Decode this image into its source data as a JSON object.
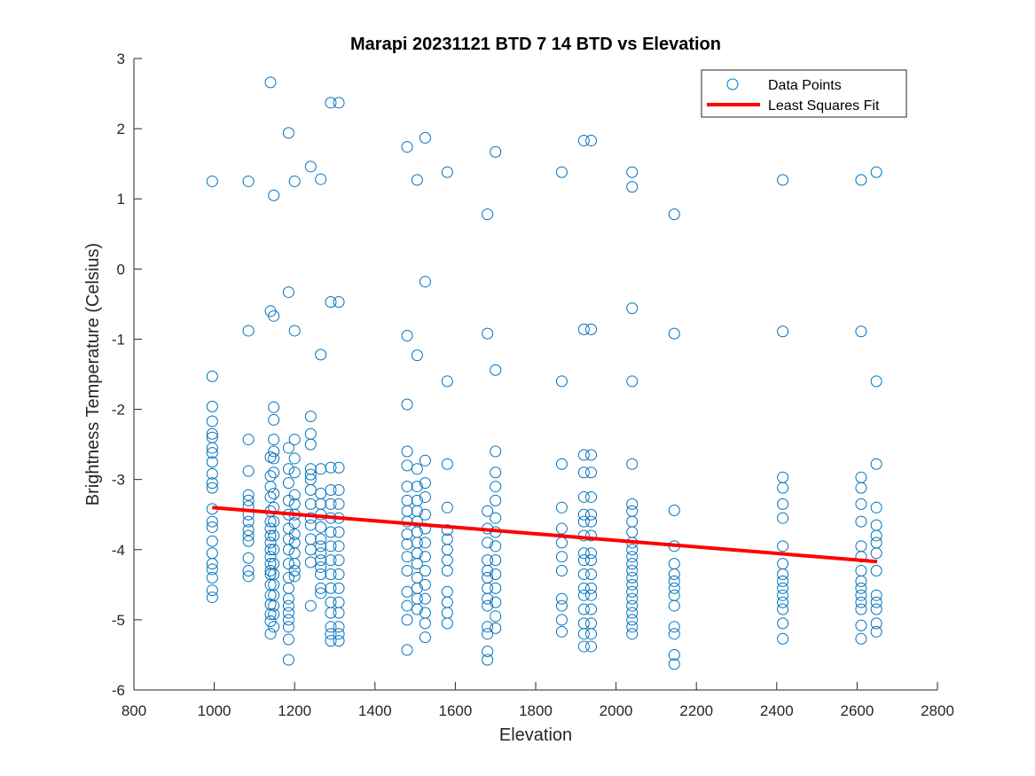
{
  "chart_data": {
    "type": "scatter",
    "title": "Marapi 20231121 BTD 7 14 BTD vs Elevation",
    "xlabel": "Elevation",
    "ylabel": "Brightness Temperature (Celsius)",
    "xlim": [
      800,
      2800
    ],
    "ylim": [
      -6,
      3
    ],
    "xticks": [
      "800",
      "1000",
      "1200",
      "1400",
      "1600",
      "1800",
      "2000",
      "2200",
      "2400",
      "2600",
      "2800"
    ],
    "yticks": [
      "-6",
      "-5",
      "-4",
      "-3",
      "-2",
      "-1",
      "0",
      "1",
      "2",
      "3"
    ],
    "grid": false,
    "legend_position": "top-right",
    "colors": {
      "points": "#0072BD",
      "fit": "#FF0000"
    },
    "series": [
      {
        "name": "Data Points",
        "marker": "circle-open",
        "groups": [
          {
            "x": 995,
            "y": [
              1.25,
              -1.53,
              -1.96,
              -2.17,
              -2.35,
              -2.4,
              -2.55,
              -2.62,
              -2.75,
              -2.92,
              -3.05,
              -3.12,
              -3.42,
              -3.6,
              -3.68,
              -3.88,
              -4.05,
              -4.2,
              -4.28,
              -4.4,
              -4.58,
              -4.68
            ]
          },
          {
            "x": 1085,
            "y": [
              1.25,
              -0.88,
              -2.43,
              -2.88,
              -3.22,
              -3.3,
              -3.38,
              -3.5,
              -3.6,
              -3.72,
              -3.8,
              -3.88,
              -4.12,
              -4.3,
              -4.38
            ]
          },
          {
            "x": 1140,
            "y": [
              2.66,
              -0.6,
              -2.68,
              -2.95,
              -3.1,
              -3.25,
              -3.45,
              -3.6,
              -3.7,
              -3.8,
              -3.9,
              -4.0,
              -4.1,
              -4.2,
              -4.3,
              -4.35,
              -4.5,
              -4.65,
              -4.78,
              -4.92,
              -5.02,
              -5.2
            ]
          },
          {
            "x": 1148,
            "y": [
              1.05,
              -0.67,
              -1.97,
              -2.15,
              -2.43,
              -2.6,
              -2.7,
              -2.9,
              -3.2,
              -3.4,
              -3.6,
              -3.8,
              -4.0,
              -4.2,
              -4.35,
              -4.5,
              -4.65,
              -4.8,
              -4.92,
              -5.1
            ]
          },
          {
            "x": 1185,
            "y": [
              1.94,
              -0.33,
              -2.55,
              -2.85,
              -3.05,
              -3.3,
              -3.5,
              -3.7,
              -3.85,
              -4.0,
              -4.2,
              -4.4,
              -4.55,
              -4.7,
              -4.8,
              -4.9,
              -5.0,
              -5.1,
              -5.28,
              -5.57
            ]
          },
          {
            "x": 1200,
            "y": [
              1.25,
              -0.88,
              -2.43,
              -2.7,
              -2.9,
              -3.22,
              -3.35,
              -3.5,
              -3.62,
              -3.78,
              -3.9,
              -4.05,
              -4.2,
              -4.3,
              -4.38
            ]
          },
          {
            "x": 1240,
            "y": [
              1.46,
              -2.1,
              -2.35,
              -2.5,
              -2.85,
              -2.93,
              -3.0,
              -3.15,
              -3.35,
              -3.55,
              -3.65,
              -3.85,
              -4.0,
              -4.18,
              -4.8
            ]
          },
          {
            "x": 1265,
            "y": [
              1.28,
              -1.22,
              -2.85,
              -3.2,
              -3.35,
              -3.5,
              -3.68,
              -3.85,
              -3.95,
              -4.05,
              -4.15,
              -4.25,
              -4.35,
              -4.55,
              -4.62
            ]
          },
          {
            "x": 1290,
            "y": [
              2.37,
              -0.47,
              -2.83,
              -3.15,
              -3.35,
              -3.55,
              -3.75,
              -3.95,
              -4.15,
              -4.35,
              -4.55,
              -4.75,
              -4.9,
              -5.1,
              -5.2,
              -5.3
            ]
          },
          {
            "x": 1310,
            "y": [
              2.37,
              -0.47,
              -2.83,
              -3.15,
              -3.35,
              -3.55,
              -3.75,
              -3.95,
              -4.15,
              -4.35,
              -4.55,
              -4.75,
              -4.9,
              -5.1,
              -5.2,
              -5.3
            ]
          },
          {
            "x": 1480,
            "y": [
              1.74,
              -0.95,
              -1.93,
              -2.6,
              -2.8,
              -3.1,
              -3.3,
              -3.45,
              -3.6,
              -3.78,
              -3.92,
              -4.1,
              -4.3,
              -4.6,
              -4.8,
              -5.0,
              -5.43
            ]
          },
          {
            "x": 1505,
            "y": [
              1.27,
              -1.23,
              -2.85,
              -3.1,
              -3.3,
              -3.45,
              -3.6,
              -3.75,
              -3.9,
              -4.05,
              -4.2,
              -4.4,
              -4.55,
              -4.7,
              -4.85
            ]
          },
          {
            "x": 1525,
            "y": [
              1.87,
              -0.18,
              -2.73,
              -3.05,
              -3.25,
              -3.5,
              -3.7,
              -3.9,
              -4.1,
              -4.3,
              -4.5,
              -4.7,
              -4.9,
              -5.05,
              -5.25
            ]
          },
          {
            "x": 1580,
            "y": [
              1.38,
              -1.6,
              -2.78,
              -3.4,
              -3.72,
              -3.85,
              -4.0,
              -4.15,
              -4.3,
              -4.6,
              -4.75,
              -4.9,
              -5.05
            ]
          },
          {
            "x": 1680,
            "y": [
              0.78,
              -0.92,
              -3.45,
              -3.7,
              -3.9,
              -4.15,
              -4.3,
              -4.4,
              -4.55,
              -4.7,
              -4.8,
              -5.1,
              -5.2,
              -5.45,
              -5.57
            ]
          },
          {
            "x": 1700,
            "y": [
              1.67,
              -1.44,
              -2.6,
              -2.9,
              -3.1,
              -3.3,
              -3.55,
              -3.75,
              -3.95,
              -4.15,
              -4.35,
              -4.55,
              -4.75,
              -4.95,
              -5.12
            ]
          },
          {
            "x": 1865,
            "y": [
              1.38,
              -1.6,
              -2.78,
              -3.4,
              -3.7,
              -3.9,
              -4.1,
              -4.3,
              -4.7,
              -4.8,
              -5.0,
              -5.17
            ]
          },
          {
            "x": 1920,
            "y": [
              1.83,
              -0.86,
              -2.65,
              -2.9,
              -3.25,
              -3.5,
              -3.6,
              -3.8,
              -4.05,
              -4.15,
              -4.35,
              -4.55,
              -4.65,
              -4.85,
              -5.05,
              -5.2,
              -5.38
            ]
          },
          {
            "x": 1938,
            "y": [
              1.83,
              -0.86,
              -2.65,
              -2.9,
              -3.25,
              -3.5,
              -3.6,
              -3.8,
              -4.05,
              -4.15,
              -4.35,
              -4.55,
              -4.65,
              -4.85,
              -5.05,
              -5.2,
              -5.38
            ]
          },
          {
            "x": 2040,
            "y": [
              1.38,
              1.17,
              -0.56,
              -1.6,
              -2.78,
              -3.35,
              -3.45,
              -3.6,
              -3.75,
              -3.9,
              -4.0,
              -4.1,
              -4.2,
              -4.3,
              -4.4,
              -4.5,
              -4.6,
              -4.7,
              -4.8,
              -4.9,
              -5.0,
              -5.1,
              -5.2
            ]
          },
          {
            "x": 2145,
            "y": [
              0.78,
              -0.92,
              -3.44,
              -3.95,
              -4.2,
              -4.35,
              -4.45,
              -4.55,
              -4.65,
              -4.8,
              -5.1,
              -5.2,
              -5.5,
              -5.63
            ]
          },
          {
            "x": 2415,
            "y": [
              1.27,
              -0.89,
              -2.97,
              -3.12,
              -3.35,
              -3.55,
              -3.95,
              -4.2,
              -4.35,
              -4.45,
              -4.55,
              -4.65,
              -4.75,
              -4.85,
              -5.05,
              -5.27
            ]
          },
          {
            "x": 2610,
            "y": [
              1.27,
              -0.89,
              -2.97,
              -3.12,
              -3.35,
              -3.6,
              -3.95,
              -4.1,
              -4.3,
              -4.45,
              -4.55,
              -4.65,
              -4.75,
              -4.85,
              -5.08,
              -5.27
            ]
          },
          {
            "x": 2648,
            "y": [
              1.38,
              -1.6,
              -2.78,
              -3.4,
              -3.65,
              -3.8,
              -3.9,
              -4.05,
              -4.3,
              -4.65,
              -4.75,
              -4.85,
              -5.05,
              -5.17
            ]
          }
        ]
      },
      {
        "name": "Least Squares Fit",
        "marker": "line",
        "x": [
          995,
          2650
        ],
        "y": [
          -3.4,
          -4.17
        ]
      }
    ]
  }
}
